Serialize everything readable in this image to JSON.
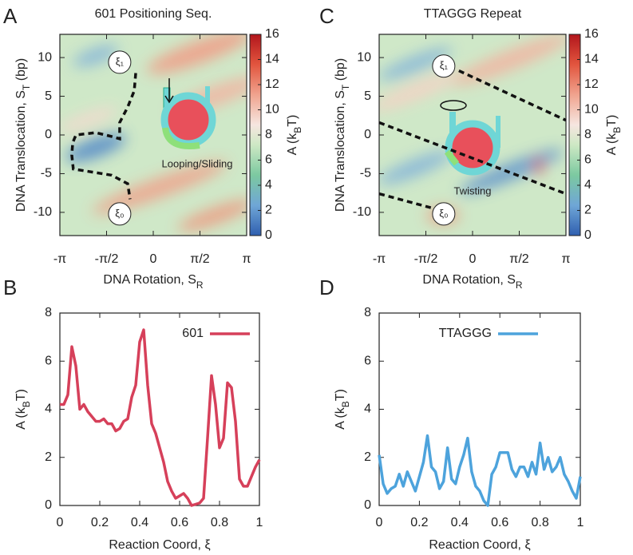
{
  "chart_data": [
    {
      "type": "heatmap",
      "panel": "A",
      "title": "601 Positioning Seq.",
      "xlabel": [
        "DNA Rotation, S",
        "R"
      ],
      "ylabel": [
        "DNA Translocation, S",
        "T",
        " (bp)"
      ],
      "xlim": [
        -3.14159,
        3.14159
      ],
      "ylim": [
        -13,
        13
      ],
      "xticks": [
        {
          "value": -3.14159,
          "label": "-π"
        },
        {
          "value": -1.5708,
          "label": "-π/2"
        },
        0,
        {
          "value": 1.5708,
          "label": "π/2"
        },
        {
          "value": 3.14159,
          "label": "π"
        }
      ],
      "yticks": [
        -10,
        -5,
        0,
        5,
        10
      ],
      "colorbar": {
        "label": [
          "A (k",
          "B",
          "T)"
        ],
        "zlim": [
          0,
          16
        ],
        "zticks": [
          0,
          2,
          4,
          6,
          8,
          10,
          12,
          14,
          16
        ]
      },
      "annotation": "Looping/Sliding",
      "paths": [
        {
          "x": [
            -0.59,
            -0.64,
            -0.86,
            -1.13,
            -1.13,
            -1.4,
            -1.93,
            -2.6,
            -2.71,
            -2.74,
            -2.69,
            -2.2,
            -1.4,
            -0.86,
            -0.78
          ],
          "y": [
            8.0,
            5.7,
            3.6,
            1.6,
            -0.5,
            -0.2,
            0.3,
            0,
            -1.0,
            -2.6,
            -4.4,
            -4.7,
            -5.2,
            -6.3,
            -8.3
          ]
        }
      ],
      "markers": [
        {
          "label": "ξ₁",
          "x": -1.13,
          "y": 9.4
        },
        {
          "label": "ξ₀",
          "x": -1.13,
          "y": -10.2
        }
      ]
    },
    {
      "type": "line",
      "panel": "B",
      "xlabel": "Reaction Coord, ξ",
      "ylabel": [
        "A (k",
        "B",
        "T)"
      ],
      "xlim": [
        0,
        1
      ],
      "ylim": [
        0,
        8
      ],
      "xticks": [
        0,
        0.2,
        0.4,
        0.6,
        0.8,
        1
      ],
      "yticks": [
        0,
        2,
        4,
        6,
        8
      ],
      "legend": "top-right",
      "x": [
        0,
        0.02,
        0.04,
        0.06,
        0.08,
        0.1,
        0.12,
        0.14,
        0.16,
        0.18,
        0.2,
        0.22,
        0.24,
        0.26,
        0.28,
        0.3,
        0.32,
        0.34,
        0.36,
        0.38,
        0.4,
        0.42,
        0.44,
        0.46,
        0.48,
        0.5,
        0.52,
        0.54,
        0.56,
        0.58,
        0.6,
        0.62,
        0.64,
        0.66,
        0.68,
        0.7,
        0.72,
        0.74,
        0.76,
        0.78,
        0.8,
        0.82,
        0.84,
        0.86,
        0.88,
        0.9,
        0.92,
        0.94,
        0.96,
        0.98,
        1
      ],
      "series": [
        {
          "name": "601",
          "color": "#d6405a",
          "values": [
            4.2,
            4.2,
            4.6,
            6.6,
            5.8,
            4.0,
            4.2,
            3.9,
            3.7,
            3.5,
            3.5,
            3.6,
            3.4,
            3.4,
            3.1,
            3.2,
            3.5,
            3.6,
            4.5,
            5.0,
            6.8,
            7.3,
            5.0,
            3.4,
            3.0,
            2.4,
            1.8,
            1.0,
            0.6,
            0.3,
            0.4,
            0.5,
            0.3,
            0.0,
            0.05,
            0.1,
            0.3,
            2.8,
            5.4,
            4.2,
            2.4,
            2.8,
            5.1,
            4.9,
            3.5,
            1.1,
            0.8,
            0.8,
            1.2,
            1.6,
            1.9
          ]
        }
      ]
    },
    {
      "type": "heatmap",
      "panel": "C",
      "title": "TTAGGG Repeat",
      "xlabel": [
        "DNA Rotation, S",
        "R"
      ],
      "ylabel": [
        "DNA Translocation, S",
        "T",
        " (bp)"
      ],
      "xlim": [
        -3.14159,
        3.14159
      ],
      "ylim": [
        -13,
        13
      ],
      "xticks": [
        {
          "value": -3.14159,
          "label": "-π"
        },
        {
          "value": -1.5708,
          "label": "-π/2"
        },
        0,
        {
          "value": 1.5708,
          "label": "π/2"
        },
        {
          "value": 3.14159,
          "label": "π"
        }
      ],
      "yticks": [
        -10,
        -5,
        0,
        5,
        10
      ],
      "colorbar": {
        "label": [
          "A (k",
          "B",
          "T)"
        ],
        "zlim": [
          0,
          16
        ],
        "zticks": [
          0,
          2,
          4,
          6,
          8,
          10,
          12,
          14,
          16
        ]
      },
      "annotation": "Twisting",
      "paths": [
        {
          "x": [
            -0.46,
            3.14
          ],
          "y": [
            8.3,
            1.9
          ]
        },
        {
          "x": [
            -3.14,
            3.14
          ],
          "y": [
            1.6,
            -7.6
          ]
        },
        {
          "x": [
            -3.14,
            -1.4
          ],
          "y": [
            -7.6,
            -9.4
          ]
        }
      ],
      "markers": [
        {
          "label": "ξ₁",
          "x": -0.97,
          "y": 8.9
        },
        {
          "label": "ξ₀",
          "x": -0.97,
          "y": -10.2
        }
      ]
    },
    {
      "type": "line",
      "panel": "D",
      "xlabel": "Reaction Coord, ξ",
      "ylabel": [
        "A (k",
        "B",
        "T)"
      ],
      "xlim": [
        0,
        1
      ],
      "ylim": [
        0,
        8
      ],
      "xticks": [
        0,
        0.2,
        0.4,
        0.6,
        0.8,
        1
      ],
      "yticks": [
        0,
        2,
        4,
        6,
        8
      ],
      "legend": "top-center",
      "x": [
        0,
        0.02,
        0.04,
        0.06,
        0.08,
        0.1,
        0.12,
        0.14,
        0.16,
        0.18,
        0.2,
        0.22,
        0.24,
        0.26,
        0.28,
        0.3,
        0.32,
        0.34,
        0.36,
        0.38,
        0.4,
        0.42,
        0.44,
        0.46,
        0.48,
        0.5,
        0.52,
        0.54,
        0.56,
        0.58,
        0.6,
        0.62,
        0.64,
        0.66,
        0.68,
        0.7,
        0.72,
        0.74,
        0.76,
        0.78,
        0.8,
        0.82,
        0.84,
        0.86,
        0.88,
        0.9,
        0.92,
        0.94,
        0.96,
        0.98,
        1
      ],
      "series": [
        {
          "name": "TTAGGG",
          "color": "#4da3dc",
          "values": [
            2.1,
            0.9,
            0.5,
            0.7,
            0.8,
            1.3,
            0.8,
            1.4,
            1.0,
            0.6,
            1.2,
            1.8,
            2.9,
            1.6,
            1.4,
            0.7,
            1.0,
            2.4,
            1.1,
            0.9,
            1.6,
            2.1,
            2.8,
            1.4,
            0.8,
            0.6,
            0.2,
            0.0,
            1.3,
            1.6,
            2.2,
            2.2,
            2.2,
            1.5,
            1.2,
            1.6,
            1.6,
            1.2,
            1.8,
            1.3,
            2.6,
            1.5,
            2.0,
            1.4,
            1.6,
            2.0,
            1.3,
            1.0,
            0.6,
            0.3,
            1.2
          ]
        }
      ]
    }
  ]
}
